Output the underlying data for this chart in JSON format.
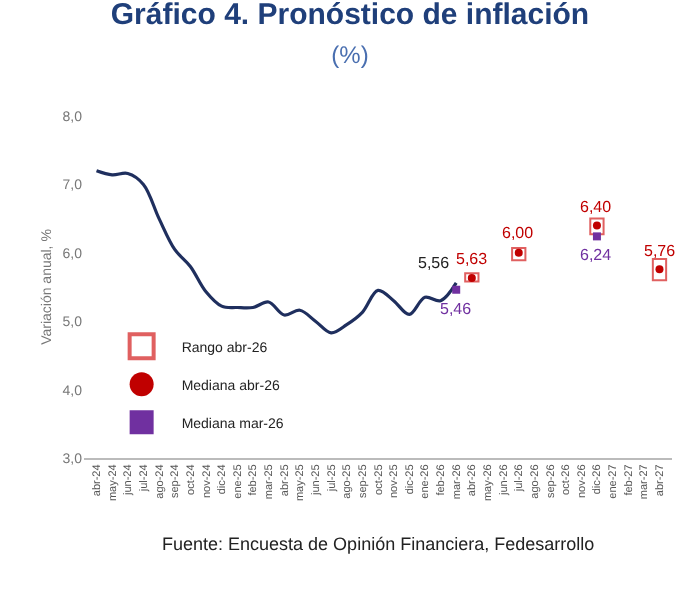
{
  "chart_data": {
    "type": "line",
    "title": "Gráfico 4. Pronóstico de inflación",
    "subtitle": "(%)",
    "ylabel": "Variación anual, %",
    "categories": [
      "abr-24",
      "may-24",
      "jun-24",
      "jul-24",
      "ago-24",
      "sep-24",
      "oct-24",
      "nov-24",
      "dic-24",
      "ene-25",
      "feb-25",
      "mar-25",
      "abr-25",
      "may-25",
      "jun-25",
      "jul-25",
      "ago-25",
      "sep-25",
      "oct-25",
      "nov-25",
      "dic-25",
      "ene-26",
      "feb-26",
      "mar-26",
      "abr-26",
      "may-26",
      "jun-26",
      "jul-26",
      "ago-26",
      "sep-26",
      "oct-26",
      "nov-26",
      "dic-26",
      "ene-27",
      "feb-27",
      "mar-27",
      "abr-27"
    ],
    "series": [
      {
        "color": "#1f2f5e",
        "values": [
          7.2,
          7.14,
          7.16,
          7.0,
          6.5,
          6.05,
          5.8,
          5.43,
          5.22,
          5.2,
          5.2,
          5.28,
          5.09,
          5.16,
          5.0,
          4.83,
          4.95,
          5.13,
          5.45,
          5.3,
          5.1,
          5.35,
          5.3,
          5.56,
          null,
          null,
          null,
          null,
          null,
          null,
          null,
          null,
          null,
          null,
          null,
          null,
          null
        ],
        "value_labels": [
          null,
          null,
          null,
          null,
          null,
          null,
          null,
          null,
          null,
          null,
          null,
          null,
          null,
          null,
          null,
          null,
          null,
          null,
          null,
          null,
          null,
          null,
          null,
          "5,56",
          null,
          null,
          null,
          null,
          null,
          null,
          null,
          null,
          null,
          null,
          null,
          null,
          null
        ]
      },
      {
        "type": "bar",
        "name": "Rango abr-26",
        "color": "#e06060",
        "base": [
          null,
          null,
          null,
          null,
          null,
          null,
          null,
          null,
          null,
          null,
          null,
          null,
          null,
          null,
          null,
          null,
          null,
          null,
          null,
          null,
          null,
          null,
          null,
          null,
          5.58,
          null,
          null,
          5.89,
          null,
          null,
          null,
          null,
          6.27,
          null,
          null,
          null,
          5.6
        ],
        "values": [
          null,
          null,
          null,
          null,
          null,
          null,
          null,
          null,
          null,
          null,
          null,
          null,
          null,
          null,
          null,
          null,
          null,
          null,
          null,
          null,
          null,
          null,
          null,
          null,
          0.12,
          null,
          null,
          0.18,
          null,
          null,
          null,
          null,
          0.23,
          null,
          null,
          null,
          0.31
        ]
      },
      {
        "type": "scatter",
        "name": "Mediana abr-26",
        "color": "#c00000",
        "marker": "circle",
        "values": [
          null,
          null,
          null,
          null,
          null,
          null,
          null,
          null,
          null,
          null,
          null,
          null,
          null,
          null,
          null,
          null,
          null,
          null,
          null,
          null,
          null,
          null,
          null,
          null,
          5.63,
          null,
          null,
          6.0,
          null,
          null,
          null,
          null,
          6.4,
          null,
          null,
          null,
          5.76
        ],
        "value_labels": [
          null,
          null,
          null,
          null,
          null,
          null,
          null,
          null,
          null,
          null,
          null,
          null,
          null,
          null,
          null,
          null,
          null,
          null,
          null,
          null,
          null,
          null,
          null,
          null,
          "5,63",
          null,
          null,
          "6,00",
          null,
          null,
          null,
          null,
          "6,40",
          null,
          null,
          null,
          "5,76"
        ]
      },
      {
        "type": "scatter",
        "name": "Mediana mar-26",
        "color": "#7030a0",
        "marker": "square",
        "values": [
          null,
          null,
          null,
          null,
          null,
          null,
          null,
          null,
          null,
          null,
          null,
          null,
          null,
          null,
          null,
          null,
          null,
          null,
          null,
          null,
          null,
          null,
          null,
          5.46,
          null,
          null,
          null,
          null,
          null,
          null,
          null,
          null,
          6.24,
          null,
          null,
          null,
          null
        ],
        "value_labels": [
          null,
          null,
          null,
          null,
          null,
          null,
          null,
          null,
          null,
          null,
          null,
          null,
          null,
          null,
          null,
          null,
          null,
          null,
          null,
          null,
          null,
          null,
          null,
          "5,46",
          null,
          null,
          null,
          null,
          null,
          null,
          null,
          null,
          "6,24",
          null,
          null,
          null,
          null
        ]
      }
    ],
    "ylim": [
      3.0,
      8.0
    ],
    "yticks": [
      {
        "value": 3.0,
        "label": "3,0"
      },
      {
        "value": 4.0,
        "label": "4,0"
      },
      {
        "value": 5.0,
        "label": "5,0"
      },
      {
        "value": 6.0,
        "label": "6,0"
      },
      {
        "value": 7.0,
        "label": "7,0"
      },
      {
        "value": 8.0,
        "label": "8,0"
      }
    ],
    "grid": false,
    "legend": "bottom left",
    "annotations": [
      "Fuente: Encuesta de Opinión Financiera, Fedesarrollo"
    ]
  }
}
